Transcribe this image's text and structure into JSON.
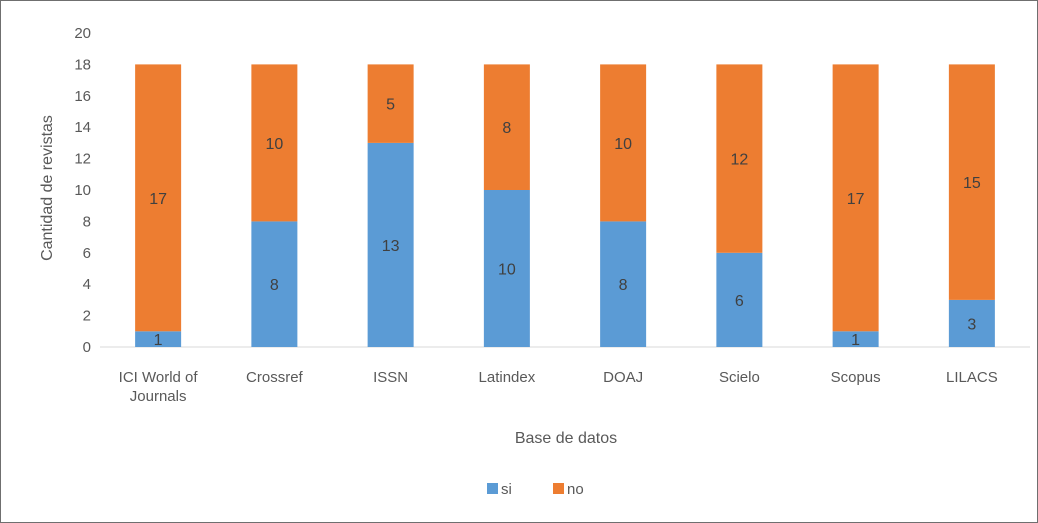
{
  "chart_data": {
    "type": "bar",
    "stacked": true,
    "categories": [
      [
        "ICI World of",
        "Journals"
      ],
      [
        "Crossref"
      ],
      [
        "ISSN"
      ],
      [
        "Latindex"
      ],
      [
        "DOAJ"
      ],
      [
        "Scielo"
      ],
      [
        "Scopus"
      ],
      [
        "LILACS"
      ]
    ],
    "series": [
      {
        "name": "si",
        "color": "#5b9bd5",
        "values": [
          1,
          8,
          13,
          10,
          8,
          6,
          1,
          3
        ]
      },
      {
        "name": "no",
        "color": "#ed7d31",
        "values": [
          17,
          10,
          5,
          8,
          10,
          12,
          17,
          15
        ]
      }
    ],
    "xlabel": "Base de datos",
    "ylabel": "Cantidad de revistas",
    "ylim": [
      0,
      20
    ],
    "yticks": [
      0,
      2,
      4,
      6,
      8,
      10,
      12,
      14,
      16,
      18,
      20
    ],
    "grid": false,
    "legend": "bottom",
    "data_labels": true
  }
}
